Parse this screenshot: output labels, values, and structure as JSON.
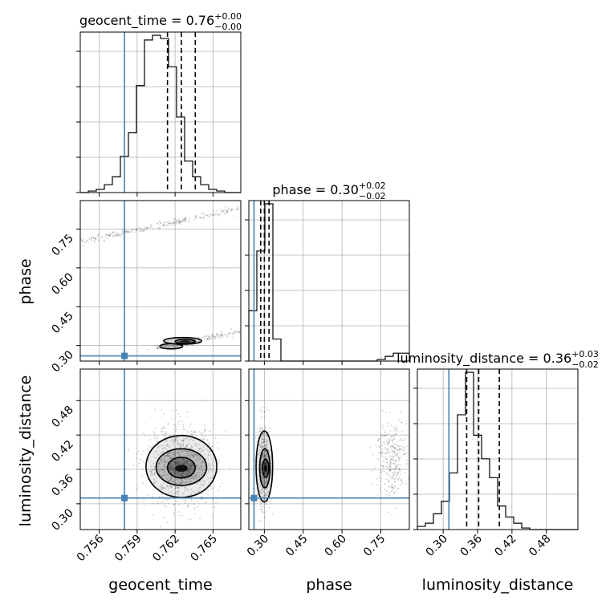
{
  "chart_data": {
    "type": "corner",
    "parameters": [
      "geocent_time",
      "phase",
      "luminosity_distance"
    ],
    "titles": [
      {
        "name": "geocent_time",
        "median": "0.76",
        "plus": "+0.00",
        "minus": "−0.00"
      },
      {
        "name": "phase",
        "median": "0.30",
        "plus": "+0.02",
        "minus": "−0.02"
      },
      {
        "name": "luminosity_distance",
        "median": "0.36",
        "plus": "+0.03",
        "minus": "−0.02"
      }
    ],
    "axes": {
      "geocent_time": {
        "range": [
          0.7545,
          0.7672
        ],
        "ticks": [
          "0.756",
          "0.759",
          "0.762",
          "0.765"
        ],
        "tick_values": [
          0.756,
          0.759,
          0.762,
          0.765
        ]
      },
      "phase": {
        "range": [
          0.24,
          0.86
        ],
        "ticks": [
          "0.30",
          "0.45",
          "0.60",
          "0.75"
        ],
        "tick_values": [
          0.3,
          0.45,
          0.6,
          0.75
        ]
      },
      "luminosity_distance": {
        "range": [
          0.255,
          0.535
        ],
        "ticks": [
          "0.30",
          "0.36",
          "0.42",
          "0.48"
        ],
        "tick_values": [
          0.3,
          0.36,
          0.42,
          0.48
        ]
      }
    },
    "truths": {
      "geocent_time": 0.758,
      "phase": 0.26,
      "luminosity_distance": 0.31
    },
    "quantiles": {
      "geocent_time": [
        0.7614,
        0.7625,
        0.7636
      ],
      "phase": [
        0.286,
        0.3,
        0.318
      ],
      "luminosity_distance": [
        0.341,
        0.362,
        0.398
      ]
    },
    "histograms": {
      "geocent_time": {
        "edges_range": [
          0.7545,
          0.7672
        ],
        "bins": 20,
        "counts": [
          0,
          1,
          2,
          5,
          10,
          23,
          38,
          68,
          97,
          100,
          98,
          80,
          48,
          20,
          10,
          5,
          2,
          1,
          0,
          0
        ]
      },
      "phase": {
        "edges_range": [
          0.24,
          0.86
        ],
        "bins": 20,
        "counts": [
          32,
          70,
          100,
          14,
          0,
          0,
          0,
          0,
          0,
          0,
          0,
          0,
          0,
          0,
          0,
          0,
          1,
          3,
          5,
          5
        ]
      },
      "luminosity_distance": {
        "edges_range": [
          0.255,
          0.535
        ],
        "bins": 20,
        "counts": [
          2,
          4,
          10,
          18,
          36,
          73,
          100,
          60,
          45,
          33,
          15,
          8,
          4,
          1,
          0,
          0,
          0,
          0,
          0,
          0
        ]
      }
    },
    "grid": true
  }
}
